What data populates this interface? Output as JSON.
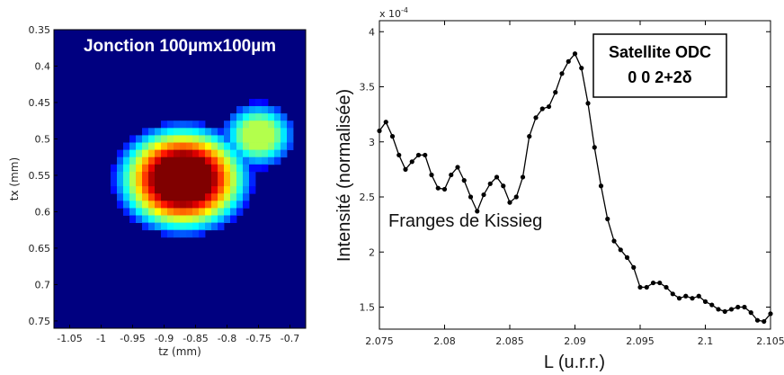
{
  "chart_data": [
    {
      "type": "heatmap",
      "title": "Jonction 100µmx100µm",
      "xlabel": "tz (mm)",
      "ylabel": "tx (mm)",
      "xticks": [
        "-1.05",
        "-1",
        "-0.95",
        "-0.9",
        "-0.85",
        "-0.8",
        "-0.75",
        "-0.7"
      ],
      "yticks": [
        "0.35",
        "0.4",
        "0.45",
        "0.5",
        "0.55",
        "0.6",
        "0.65",
        "0.7",
        "0.75"
      ],
      "xlim": [
        -1.075,
        -0.675
      ],
      "ylim": [
        0.35,
        0.76
      ],
      "colormap": "jet",
      "grid_x": [
        -1.05,
        -1.04,
        -1.03,
        -1.02,
        -1.01,
        -1.0,
        -0.99,
        -0.98,
        -0.97,
        -0.96,
        -0.95,
        -0.94,
        -0.93,
        -0.92,
        -0.91,
        -0.9,
        -0.89,
        -0.88,
        -0.87,
        -0.86,
        -0.85,
        -0.84,
        -0.83,
        -0.82,
        -0.81,
        -0.8,
        -0.79,
        -0.78,
        -0.77,
        -0.76,
        -0.75,
        -0.74,
        -0.73,
        -0.72,
        -0.71,
        -0.7
      ],
      "grid_y": [
        0.36,
        0.37,
        0.38,
        0.39,
        0.4,
        0.41,
        0.42,
        0.43,
        0.44,
        0.45,
        0.46,
        0.47,
        0.48,
        0.49,
        0.5,
        0.51,
        0.52,
        0.53,
        0.54,
        0.55,
        0.56,
        0.57,
        0.58,
        0.59,
        0.6,
        0.61,
        0.62,
        0.63,
        0.64,
        0.65,
        0.66,
        0.67,
        0.68,
        0.69,
        0.7,
        0.71,
        0.72,
        0.73,
        0.74,
        0.75
      ],
      "features": [
        {
          "shape": "blob",
          "cz": -0.87,
          "cx": 0.555,
          "rz": 0.085,
          "rx": 0.06,
          "peak": 1.0
        },
        {
          "shape": "blob",
          "cz": -0.75,
          "cx": 0.495,
          "rz": 0.045,
          "rx": 0.035,
          "peak": 0.5
        }
      ],
      "background_level": 0.0
    },
    {
      "type": "line",
      "title": "",
      "xlabel": "L (u.r.r.)",
      "ylabel": "Intensité (normalisée)",
      "y_multiplier": "x 10^-4",
      "xlim": [
        2.075,
        2.105
      ],
      "ylim": [
        1.3,
        4.1
      ],
      "xticks": [
        "2.075",
        "2.08",
        "2.085",
        "2.09",
        "2.095",
        "2.1",
        "2.105"
      ],
      "yticks": [
        "1.5",
        "2",
        "2.5",
        "3",
        "3.5",
        "4"
      ],
      "annotation_box": [
        "Satellite ODC",
        "0 0 2+2δ"
      ],
      "annotation_text": "Franges de Kissieg",
      "series": [
        {
          "x": [
            2.075,
            2.0755,
            2.076,
            2.0765,
            2.077,
            2.0775,
            2.078,
            2.0785,
            2.079,
            2.0795,
            2.08,
            2.0805,
            2.081,
            2.0815,
            2.082,
            2.0825,
            2.083,
            2.0835,
            2.084,
            2.0845,
            2.085,
            2.0855,
            2.086,
            2.0865,
            2.087,
            2.0875,
            2.088,
            2.0885,
            2.089,
            2.0895,
            2.09,
            2.0905,
            2.091,
            2.0915,
            2.092,
            2.0925,
            2.093,
            2.0935,
            2.094,
            2.0945,
            2.095,
            2.0955,
            2.096,
            2.0965,
            2.097,
            2.0975,
            2.098,
            2.0985,
            2.099,
            2.0995,
            2.1,
            2.1005,
            2.101,
            2.1015,
            2.102,
            2.1025,
            2.103,
            2.1035,
            2.104,
            2.1045,
            2.105
          ],
          "y": [
            3.1,
            3.18,
            3.05,
            2.88,
            2.75,
            2.82,
            2.88,
            2.88,
            2.7,
            2.58,
            2.57,
            2.7,
            2.77,
            2.65,
            2.5,
            2.37,
            2.52,
            2.62,
            2.68,
            2.6,
            2.45,
            2.5,
            2.68,
            3.05,
            3.22,
            3.3,
            3.32,
            3.45,
            3.62,
            3.73,
            3.8,
            3.67,
            3.35,
            2.95,
            2.6,
            2.3,
            2.1,
            2.02,
            1.95,
            1.86,
            1.68,
            1.68,
            1.72,
            1.72,
            1.68,
            1.62,
            1.58,
            1.6,
            1.58,
            1.6,
            1.55,
            1.52,
            1.48,
            1.46,
            1.48,
            1.5,
            1.5,
            1.45,
            1.38,
            1.37,
            1.44
          ]
        }
      ]
    }
  ]
}
